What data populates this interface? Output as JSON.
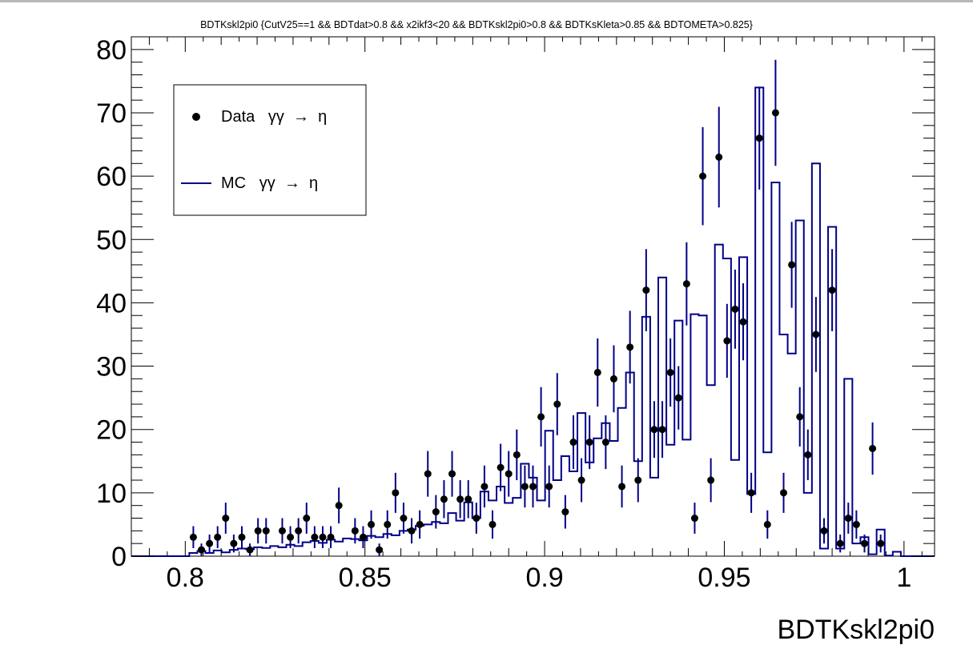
{
  "chart_data": {
    "type": "scatter",
    "title": "BDTKskl2pi0 {CutV25==1 && BDTdat>0.8 && x2ikf3<20 && BDTKskl2pi0>0.8 && BDTKsKleta>0.85 && BDTOMETA>0.825}",
    "xlabel": "BDTKskl2pi0",
    "ylabel": "",
    "xlim": [
      0.785,
      1.0085
    ],
    "ylim": [
      0,
      82
    ],
    "x_ticks": [
      {
        "value": 0.8,
        "label": "0.8"
      },
      {
        "value": 0.85,
        "label": "0.85"
      },
      {
        "value": 0.9,
        "label": "0.9"
      },
      {
        "value": 0.95,
        "label": "0.95"
      },
      {
        "value": 1.0,
        "label": "1"
      }
    ],
    "y_ticks": [
      {
        "value": 0,
        "label": "0"
      },
      {
        "value": 10,
        "label": "10"
      },
      {
        "value": 20,
        "label": "20"
      },
      {
        "value": 30,
        "label": "30"
      },
      {
        "value": 40,
        "label": "40"
      },
      {
        "value": 50,
        "label": "50"
      },
      {
        "value": 60,
        "label": "60"
      },
      {
        "value": 70,
        "label": "70"
      },
      {
        "value": 80,
        "label": "80"
      }
    ],
    "legend": {
      "placement": "top-left",
      "entries": [
        {
          "label": "Data   γγ  →  η",
          "kind": "marker"
        },
        {
          "label": "MC   γγ  →  η",
          "kind": "line"
        }
      ]
    },
    "series": [
      {
        "name": "Data γγ → η",
        "kind": "points",
        "color": "#000000",
        "x": [
          0.80225,
          0.8045,
          0.80675,
          0.809,
          0.81125,
          0.8135,
          0.81575,
          0.818,
          0.82025,
          0.8225,
          0.82475,
          0.827,
          0.82925,
          0.8315,
          0.83375,
          0.836,
          0.83825,
          0.8405,
          0.84275,
          0.845,
          0.84725,
          0.8495,
          0.85175,
          0.854,
          0.85625,
          0.8585,
          0.86075,
          0.863,
          0.86525,
          0.8675,
          0.86975,
          0.872,
          0.87425,
          0.8765,
          0.87875,
          0.881,
          0.88325,
          0.8855,
          0.88775,
          0.89,
          0.89225,
          0.8945,
          0.89675,
          0.899,
          0.90125,
          0.9035,
          0.90575,
          0.908,
          0.91025,
          0.9125,
          0.91475,
          0.917,
          0.91925,
          0.9215,
          0.92375,
          0.926,
          0.92825,
          0.9305,
          0.93275,
          0.935,
          0.93725,
          0.9395,
          0.94175,
          0.944,
          0.94625,
          0.9485,
          0.95075,
          0.953,
          0.95525,
          0.9575,
          0.95975,
          0.962,
          0.96425,
          0.9665,
          0.96875,
          0.971,
          0.97325,
          0.9755,
          0.97775,
          0.98,
          0.98225,
          0.9845,
          0.98675,
          0.989,
          0.99125,
          0.9935
        ],
        "y": [
          3,
          1,
          2,
          3,
          6,
          2,
          3,
          1,
          4,
          4,
          0,
          4,
          3,
          4,
          6,
          3,
          3,
          3,
          8,
          0,
          4,
          3,
          5,
          1,
          5,
          10,
          6,
          4,
          5,
          13,
          7,
          9,
          13,
          9,
          9,
          6,
          11,
          5,
          14,
          13,
          16,
          11,
          11,
          22,
          11,
          24,
          7,
          18,
          12,
          18,
          29,
          18,
          28,
          11,
          33,
          12,
          42,
          20,
          20,
          29,
          25,
          43,
          6,
          60,
          12,
          63,
          34,
          39,
          37,
          10,
          66,
          5,
          70,
          10,
          46,
          22,
          16,
          35,
          4,
          42,
          2,
          6,
          5,
          2,
          17,
          2
        ]
      },
      {
        "name": "MC γγ → η",
        "kind": "step-histogram",
        "color": "#000088",
        "x": [
          0.80225,
          0.8045,
          0.80675,
          0.809,
          0.81125,
          0.8135,
          0.81575,
          0.818,
          0.82025,
          0.8225,
          0.82475,
          0.827,
          0.82925,
          0.8315,
          0.83375,
          0.836,
          0.83825,
          0.8405,
          0.84275,
          0.845,
          0.84725,
          0.8495,
          0.85175,
          0.854,
          0.85625,
          0.8585,
          0.86075,
          0.863,
          0.86525,
          0.8675,
          0.86975,
          0.872,
          0.87425,
          0.8765,
          0.87875,
          0.881,
          0.88325,
          0.8855,
          0.88775,
          0.89,
          0.89225,
          0.8945,
          0.89675,
          0.899,
          0.90125,
          0.9035,
          0.90575,
          0.908,
          0.91025,
          0.9125,
          0.91475,
          0.917,
          0.91925,
          0.9215,
          0.92375,
          0.926,
          0.92825,
          0.9305,
          0.93275,
          0.935,
          0.93725,
          0.9395,
          0.94175,
          0.944,
          0.94625,
          0.9485,
          0.95075,
          0.953,
          0.95525,
          0.9575,
          0.95975,
          0.962,
          0.96425,
          0.9665,
          0.96875,
          0.971,
          0.97325,
          0.9755,
          0.97775,
          0.98,
          0.98225,
          0.9845,
          0.98675,
          0.989,
          0.99125,
          0.9935,
          0.99575,
          0.998
        ],
        "y": [
          0.5,
          0.8,
          0.5,
          0.9,
          0.6,
          1.0,
          1.2,
          1.1,
          1.4,
          1.3,
          1.6,
          1.4,
          1.8,
          1.6,
          2.2,
          2.4,
          2.1,
          2.6,
          2.3,
          2.8,
          2.7,
          2.5,
          3.2,
          3.0,
          3.5,
          3.3,
          4.0,
          4.2,
          4.8,
          5.0,
          5.4,
          5.2,
          6.8,
          5.6,
          8.5,
          6.0,
          10.2,
          8.8,
          11.0,
          8.4,
          9.2,
          14.6,
          12.4,
          8.8,
          19.8,
          12.0,
          15.8,
          13.4,
          22.6,
          14.8,
          18.6,
          21.0,
          18.2,
          23.4,
          29.0,
          15.0,
          37.8,
          12.4,
          44.0,
          17.6,
          37.2,
          18.4,
          38.2,
          38.0,
          27.0,
          49.2,
          47.0,
          15.2,
          47.2,
          9.8,
          74.0,
          16.4,
          59.0,
          35.0,
          32.0,
          53.0,
          10.0,
          62.0,
          1.2,
          52.0,
          1.2,
          28.0,
          2.0,
          3.0,
          0.3,
          4.2,
          0.1,
          0.7
        ]
      }
    ]
  }
}
